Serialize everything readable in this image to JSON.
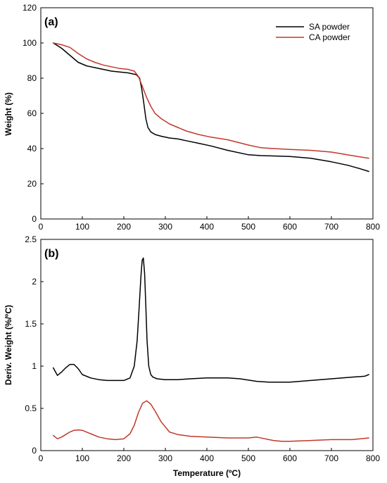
{
  "chart_data": [
    {
      "type": "line",
      "panel_label": "(a)",
      "xlabel": "",
      "ylabel": "Weight (%)",
      "xlim": [
        0,
        800
      ],
      "ylim": [
        0,
        120
      ],
      "xticks": [
        0,
        100,
        200,
        300,
        400,
        500,
        600,
        700,
        800
      ],
      "yticks": [
        0,
        20,
        40,
        60,
        80,
        100,
        120
      ],
      "legend_position": "top-right",
      "series": [
        {
          "name": "SA powder",
          "color": "#000000",
          "x": [
            30,
            50,
            70,
            90,
            110,
            130,
            150,
            170,
            190,
            210,
            230,
            238,
            243,
            248,
            253,
            258,
            265,
            275,
            290,
            310,
            330,
            350,
            380,
            410,
            450,
            500,
            530,
            560,
            600,
            650,
            700,
            740,
            770,
            790
          ],
          "y": [
            100,
            97,
            93,
            89,
            87,
            86,
            85,
            84,
            83.5,
            83,
            82,
            80,
            74,
            66,
            57,
            52,
            49.5,
            48,
            47,
            46,
            45.5,
            44.5,
            43,
            41.5,
            39,
            36.5,
            36,
            35.8,
            35.5,
            34.5,
            32.5,
            30.5,
            28.5,
            27
          ]
        },
        {
          "name": "CA powder",
          "color": "#c0392b",
          "x": [
            30,
            50,
            70,
            90,
            110,
            130,
            150,
            170,
            190,
            210,
            225,
            235,
            245,
            255,
            265,
            275,
            290,
            310,
            330,
            350,
            380,
            410,
            450,
            500,
            530,
            560,
            600,
            650,
            700,
            750,
            790
          ],
          "y": [
            100,
            99,
            97.5,
            94,
            91,
            89,
            87.5,
            86.5,
            85.5,
            85,
            84,
            81,
            75,
            69,
            64,
            60,
            57,
            54,
            52,
            50,
            48,
            46.5,
            45,
            42,
            40.5,
            40,
            39.5,
            39,
            38,
            36,
            34.5
          ]
        }
      ]
    },
    {
      "type": "line",
      "panel_label": "(b)",
      "xlabel": "Temperature (ºC)",
      "ylabel": "Deriv. Weight (%/ºC)",
      "xlim": [
        0,
        800
      ],
      "ylim": [
        0,
        2.5
      ],
      "xticks": [
        0,
        100,
        200,
        300,
        400,
        500,
        600,
        700,
        800
      ],
      "yticks": [
        0,
        0.5,
        1,
        1.5,
        2,
        2.5
      ],
      "series": [
        {
          "color": "#000000",
          "x": [
            30,
            40,
            50,
            60,
            70,
            80,
            90,
            100,
            120,
            140,
            160,
            180,
            200,
            215,
            225,
            232,
            237,
            241,
            244,
            247,
            250,
            253,
            256,
            260,
            265,
            270,
            280,
            300,
            330,
            360,
            400,
            450,
            480,
            520,
            550,
            600,
            650,
            700,
            750,
            780,
            790
          ],
          "y": [
            0.98,
            0.89,
            0.93,
            0.98,
            1.02,
            1.02,
            0.97,
            0.9,
            0.86,
            0.84,
            0.83,
            0.83,
            0.83,
            0.86,
            1.0,
            1.3,
            1.7,
            2.05,
            2.25,
            2.28,
            2.1,
            1.7,
            1.3,
            1.0,
            0.9,
            0.87,
            0.85,
            0.84,
            0.84,
            0.85,
            0.86,
            0.86,
            0.85,
            0.82,
            0.81,
            0.81,
            0.83,
            0.85,
            0.87,
            0.88,
            0.9
          ]
        },
        {
          "color": "#c0392b",
          "x": [
            30,
            40,
            50,
            60,
            70,
            80,
            90,
            100,
            120,
            140,
            160,
            180,
            200,
            215,
            225,
            235,
            245,
            255,
            265,
            275,
            290,
            310,
            330,
            360,
            400,
            450,
            500,
            520,
            540,
            560,
            580,
            600,
            650,
            700,
            750,
            790
          ],
          "y": [
            0.18,
            0.14,
            0.16,
            0.19,
            0.22,
            0.24,
            0.245,
            0.24,
            0.2,
            0.16,
            0.14,
            0.13,
            0.14,
            0.2,
            0.3,
            0.45,
            0.56,
            0.59,
            0.55,
            0.47,
            0.34,
            0.22,
            0.19,
            0.17,
            0.16,
            0.15,
            0.15,
            0.16,
            0.14,
            0.12,
            0.11,
            0.11,
            0.12,
            0.13,
            0.13,
            0.15
          ]
        }
      ]
    }
  ]
}
